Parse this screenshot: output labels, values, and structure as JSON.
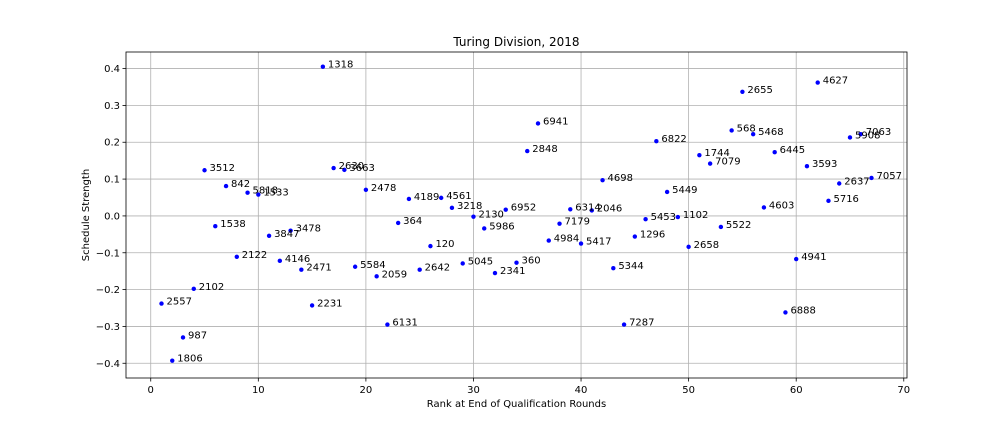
{
  "chart_data": {
    "type": "scatter",
    "title": "Turing Division, 2018",
    "xlabel": "Rank at End of Qualification Rounds",
    "ylabel": "Schedule Strength",
    "xlim": [
      -2.3,
      70.3
    ],
    "ylim": [
      -0.44,
      0.445
    ],
    "xticks": [
      0,
      10,
      20,
      30,
      40,
      50,
      60,
      70
    ],
    "yticks": [
      -0.4,
      -0.3,
      -0.2,
      -0.1,
      0.0,
      0.1,
      0.2,
      0.3,
      0.4
    ],
    "xtick_labels": [
      "0",
      "10",
      "20",
      "30",
      "40",
      "50",
      "60",
      "70"
    ],
    "ytick_labels": [
      "−0.4",
      "−0.3",
      "−0.2",
      "−0.1",
      "0.0",
      "0.1",
      "0.2",
      "0.3",
      "0.4"
    ],
    "grid": true,
    "marker_color": "#0000ff",
    "points": [
      {
        "x": 1,
        "y": -0.238,
        "label": "2557"
      },
      {
        "x": 2,
        "y": -0.393,
        "label": "1806"
      },
      {
        "x": 3,
        "y": -0.33,
        "label": "987"
      },
      {
        "x": 4,
        "y": -0.198,
        "label": "2102"
      },
      {
        "x": 5,
        "y": 0.124,
        "label": "3512"
      },
      {
        "x": 6,
        "y": -0.028,
        "label": "1538"
      },
      {
        "x": 7,
        "y": 0.081,
        "label": "842"
      },
      {
        "x": 8,
        "y": -0.111,
        "label": "2122"
      },
      {
        "x": 9,
        "y": 0.063,
        "label": "5818"
      },
      {
        "x": 10,
        "y": 0.058,
        "label": "1533"
      },
      {
        "x": 11,
        "y": -0.054,
        "label": "3847"
      },
      {
        "x": 12,
        "y": -0.122,
        "label": "4146"
      },
      {
        "x": 13,
        "y": -0.04,
        "label": "3478"
      },
      {
        "x": 14,
        "y": -0.146,
        "label": "2471"
      },
      {
        "x": 15,
        "y": -0.243,
        "label": "2231"
      },
      {
        "x": 16,
        "y": 0.405,
        "label": "1318"
      },
      {
        "x": 17,
        "y": 0.13,
        "label": "2630"
      },
      {
        "x": 18,
        "y": 0.125,
        "label": "3663"
      },
      {
        "x": 19,
        "y": -0.138,
        "label": "5584"
      },
      {
        "x": 20,
        "y": 0.071,
        "label": "2478"
      },
      {
        "x": 21,
        "y": -0.164,
        "label": "2059"
      },
      {
        "x": 22,
        "y": -0.295,
        "label": "6131"
      },
      {
        "x": 23,
        "y": -0.019,
        "label": "364"
      },
      {
        "x": 24,
        "y": 0.046,
        "label": "4189"
      },
      {
        "x": 25,
        "y": -0.146,
        "label": "2642"
      },
      {
        "x": 26,
        "y": -0.082,
        "label": "120"
      },
      {
        "x": 27,
        "y": 0.049,
        "label": "4561"
      },
      {
        "x": 28,
        "y": 0.022,
        "label": "3218"
      },
      {
        "x": 29,
        "y": -0.129,
        "label": "5045"
      },
      {
        "x": 30,
        "y": -0.002,
        "label": "2130"
      },
      {
        "x": 31,
        "y": -0.034,
        "label": "5986"
      },
      {
        "x": 32,
        "y": -0.155,
        "label": "2341"
      },
      {
        "x": 33,
        "y": 0.017,
        "label": "6952"
      },
      {
        "x": 34,
        "y": -0.127,
        "label": "360"
      },
      {
        "x": 35,
        "y": 0.176,
        "label": "2848"
      },
      {
        "x": 36,
        "y": 0.251,
        "label": "6941"
      },
      {
        "x": 37,
        "y": -0.067,
        "label": "4984"
      },
      {
        "x": 38,
        "y": -0.021,
        "label": "7179"
      },
      {
        "x": 39,
        "y": 0.018,
        "label": "6314"
      },
      {
        "x": 40,
        "y": -0.075,
        "label": "5417"
      },
      {
        "x": 41,
        "y": 0.015,
        "label": "2046"
      },
      {
        "x": 42,
        "y": 0.097,
        "label": "4698"
      },
      {
        "x": 43,
        "y": -0.142,
        "label": "5344"
      },
      {
        "x": 44,
        "y": -0.295,
        "label": "7287"
      },
      {
        "x": 45,
        "y": -0.056,
        "label": "1296"
      },
      {
        "x": 46,
        "y": -0.009,
        "label": "5453"
      },
      {
        "x": 47,
        "y": 0.203,
        "label": "6822"
      },
      {
        "x": 48,
        "y": 0.065,
        "label": "5449"
      },
      {
        "x": 49,
        "y": -0.003,
        "label": "1102"
      },
      {
        "x": 50,
        "y": -0.084,
        "label": "2658"
      },
      {
        "x": 51,
        "y": 0.165,
        "label": "1744"
      },
      {
        "x": 52,
        "y": 0.142,
        "label": "7079"
      },
      {
        "x": 53,
        "y": -0.03,
        "label": "5522"
      },
      {
        "x": 54,
        "y": 0.232,
        "label": "568"
      },
      {
        "x": 55,
        "y": 0.337,
        "label": "2655"
      },
      {
        "x": 56,
        "y": 0.222,
        "label": "5468"
      },
      {
        "x": 57,
        "y": 0.023,
        "label": "4603"
      },
      {
        "x": 58,
        "y": 0.173,
        "label": "6445"
      },
      {
        "x": 59,
        "y": -0.262,
        "label": "6888"
      },
      {
        "x": 60,
        "y": -0.117,
        "label": "4941"
      },
      {
        "x": 61,
        "y": 0.135,
        "label": "3593"
      },
      {
        "x": 62,
        "y": 0.362,
        "label": "4627"
      },
      {
        "x": 63,
        "y": 0.041,
        "label": "5716"
      },
      {
        "x": 64,
        "y": 0.088,
        "label": "2637"
      },
      {
        "x": 65,
        "y": 0.213,
        "label": "5908"
      },
      {
        "x": 66,
        "y": 0.222,
        "label": "7063"
      },
      {
        "x": 67,
        "y": 0.103,
        "label": "7057"
      }
    ]
  }
}
